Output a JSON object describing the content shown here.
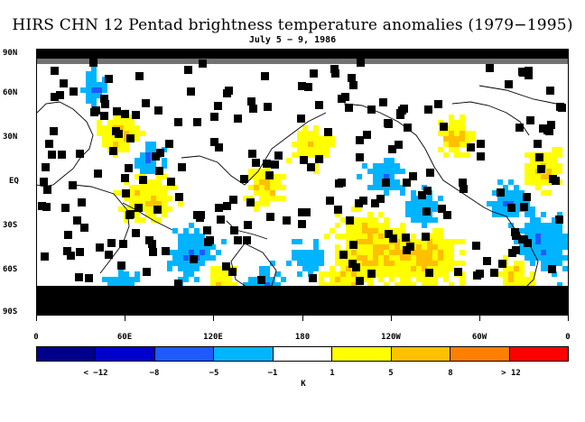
{
  "title": "HIRS CHN 12 Pentad brightness temperature anomalies (1979−1995)",
  "subtitle": "July 5 − 9, 1986",
  "lat_labels": [
    "90N",
    "60N",
    "30N",
    "EQ",
    "30S",
    "60S",
    "90S"
  ],
  "lon_labels": [
    "0",
    "60E",
    "120E",
    "180",
    "120W",
    "60W",
    "0"
  ],
  "colorbar": {
    "colors": [
      "#00008b",
      "#0000cd",
      "#1e5aff",
      "#00b4ff",
      "#ffffff",
      "#ffff00",
      "#ffc000",
      "#ff8000",
      "#ff0000"
    ],
    "labels": [
      "< −12",
      "−8",
      "−5",
      "−1",
      "1",
      "5",
      "8",
      "> 12"
    ],
    "units": "K"
  },
  "map_colors": {
    "missing": "#000000",
    "coast": "#000000"
  }
}
